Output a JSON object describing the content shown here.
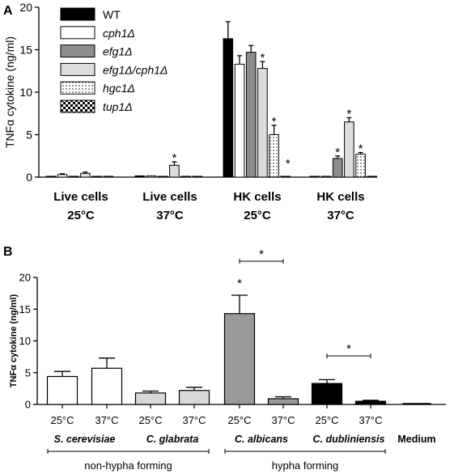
{
  "chart_data": [
    {
      "panel": "A",
      "type": "bar",
      "ylabel": "TNFα cytokine (ng/ml)",
      "ylim": [
        0,
        20
      ],
      "yticks": [
        0,
        5,
        10,
        15,
        20
      ],
      "categories": [
        {
          "line1": "Live cells",
          "line2": "25°C"
        },
        {
          "line1": "Live cells",
          "line2": "37°C"
        },
        {
          "line1": "HK cells",
          "line2": "25°C"
        },
        {
          "line1": "HK cells",
          "line2": "37°C"
        }
      ],
      "series": [
        {
          "name": "WT",
          "pattern": "black",
          "values": [
            0.1,
            0.15,
            16.3,
            0.1
          ],
          "errors": [
            0.05,
            0.05,
            2.0,
            0.05
          ],
          "stars": [
            false,
            false,
            false,
            false
          ]
        },
        {
          "name": "cph1Δ",
          "pattern": "white",
          "values": [
            0.3,
            0.15,
            13.3,
            0.1
          ],
          "errors": [
            0.1,
            0.05,
            1.0,
            0.05
          ],
          "stars": [
            false,
            false,
            false,
            false
          ]
        },
        {
          "name": "efg1Δ",
          "pattern": "darkgray",
          "values": [
            0.1,
            0.1,
            14.7,
            2.2
          ],
          "errors": [
            0.05,
            0.05,
            0.8,
            0.3
          ],
          "stars": [
            false,
            false,
            false,
            true
          ]
        },
        {
          "name": "efg1Δ/cph1Δ",
          "pattern": "lightgray",
          "values": [
            0.45,
            1.4,
            12.8,
            6.5
          ],
          "errors": [
            0.15,
            0.4,
            0.8,
            0.5
          ],
          "stars": [
            false,
            true,
            true,
            true
          ]
        },
        {
          "name": "hgc1Δ",
          "pattern": "dots",
          "values": [
            0.1,
            0.1,
            5.0,
            2.7
          ],
          "errors": [
            0.05,
            0.05,
            1.1,
            0.2
          ],
          "stars": [
            false,
            false,
            true,
            true
          ]
        },
        {
          "name": "tup1Δ",
          "pattern": "checker",
          "values": [
            0.1,
            0.1,
            0.1,
            0.1
          ],
          "errors": [
            0.05,
            0.05,
            0.05,
            0.05
          ],
          "stars": [
            false,
            false,
            true,
            false
          ]
        }
      ]
    },
    {
      "panel": "B",
      "type": "bar",
      "ylabel": "TNFα cytokine (ng/ml)",
      "ylim": [
        0,
        20
      ],
      "yticks": [
        0,
        5,
        10,
        15,
        20
      ],
      "bars": [
        {
          "label": "25°C",
          "species": "S. cerevisiae",
          "value": 4.4,
          "error": 0.8,
          "color": "#ffffff",
          "star": false
        },
        {
          "label": "37°C",
          "species": "S. cerevisiae",
          "value": 5.7,
          "error": 1.6,
          "color": "#ffffff",
          "star": false
        },
        {
          "label": "25°C",
          "species": "C. glabrata",
          "value": 1.8,
          "error": 0.3,
          "color": "#d9d9d9",
          "star": false
        },
        {
          "label": "37°C",
          "species": "C. glabrata",
          "value": 2.2,
          "error": 0.5,
          "color": "#d9d9d9",
          "star": false
        },
        {
          "label": "25°C",
          "species": "C. albicans",
          "value": 14.3,
          "error": 2.9,
          "color": "#999999",
          "star": true
        },
        {
          "label": "37°C",
          "species": "C. albicans",
          "value": 0.9,
          "error": 0.3,
          "color": "#999999",
          "star": false
        },
        {
          "label": "25°C",
          "species": "C. dubliniensis",
          "value": 3.3,
          "error": 0.6,
          "color": "#000000",
          "star": false
        },
        {
          "label": "37°C",
          "species": "C. dubliniensis",
          "value": 0.5,
          "error": 0.15,
          "color": "#000000",
          "star": false
        },
        {
          "label": "",
          "species": "Medium",
          "value": 0.15,
          "error": 0.05,
          "color": "#000000",
          "star": false
        }
      ],
      "species_labels": [
        "S. cerevisiae",
        "C. glabrata",
        "C. albicans",
        "C. dubliniensis"
      ],
      "medium_label": "Medium",
      "significance_brackets": [
        {
          "from_bar": 4,
          "to_bar": 5,
          "label": "*"
        },
        {
          "from_bar": 6,
          "to_bar": 7,
          "label": "*"
        }
      ],
      "groups": [
        {
          "label": "non-hypha forming",
          "from_bar": 0,
          "to_bar": 3
        },
        {
          "label": "hypha forming",
          "from_bar": 4,
          "to_bar": 7
        }
      ]
    }
  ],
  "panel_labels": {
    "a": "A",
    "b": "B"
  }
}
